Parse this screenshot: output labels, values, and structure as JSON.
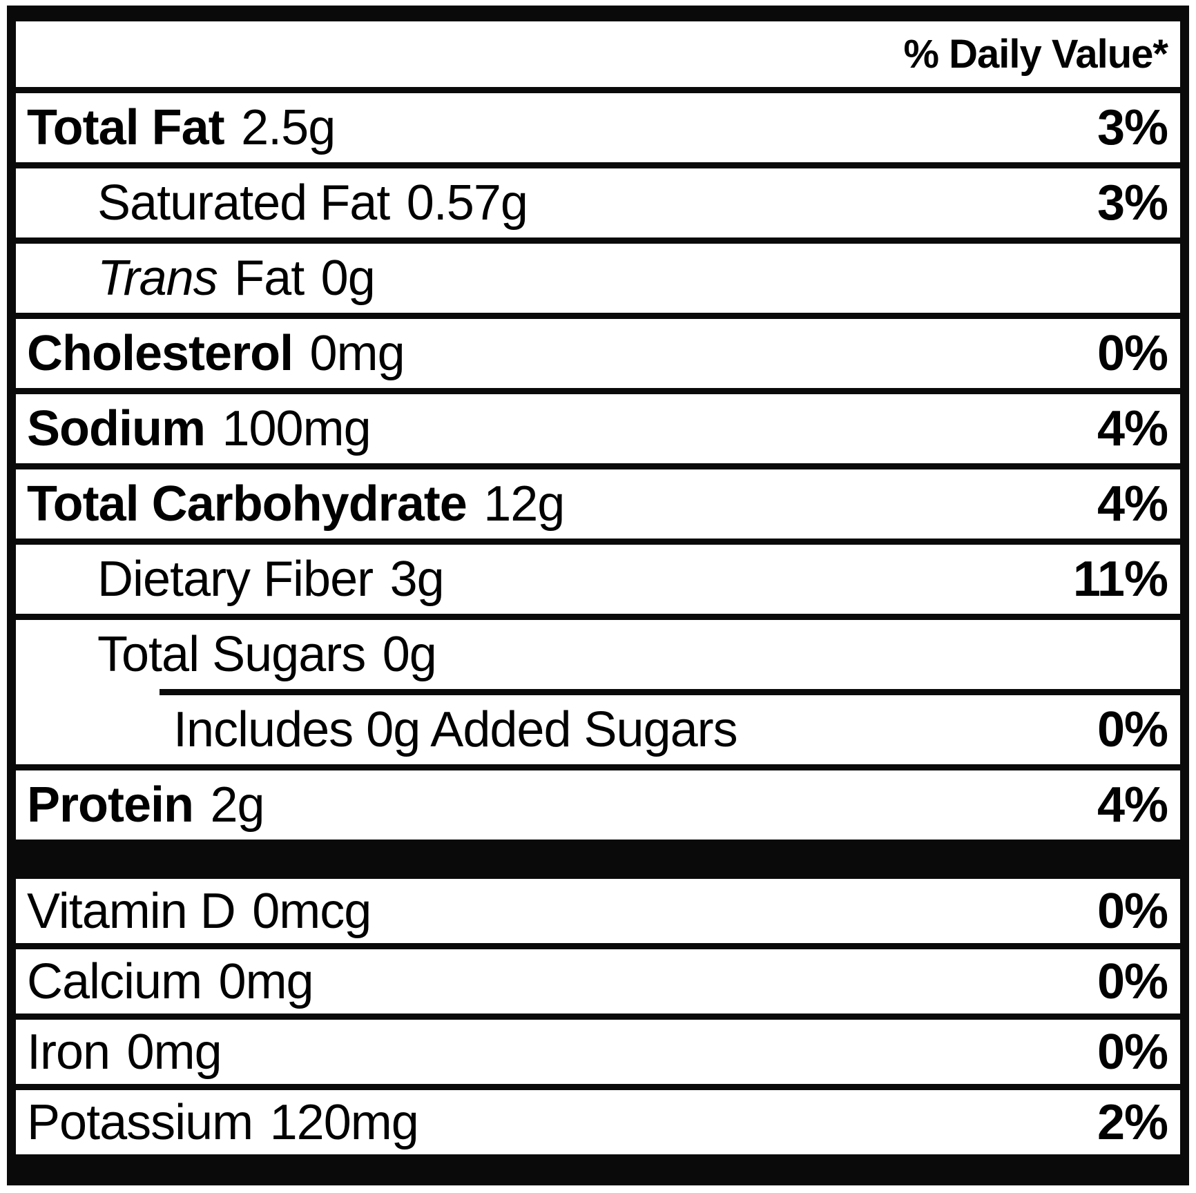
{
  "header": {
    "daily_value_label": "% Daily Value*"
  },
  "rows": [
    {
      "label": "Total Fat",
      "amount": "2.5g",
      "dv": "3%"
    },
    {
      "label": "Saturated Fat",
      "amount": "0.57g",
      "dv": "3%"
    },
    {
      "label_italic": "Trans",
      "label": "Fat",
      "amount": "0g",
      "dv": ""
    },
    {
      "label": "Cholesterol",
      "amount": "0mg",
      "dv": "0%"
    },
    {
      "label": "Sodium",
      "amount": "100mg",
      "dv": "4%"
    },
    {
      "label": "Total Carbohydrate",
      "amount": "12g",
      "dv": "4%"
    },
    {
      "label": "Dietary Fiber",
      "amount": "3g",
      "dv": "11%"
    },
    {
      "label": "Total Sugars",
      "amount": "0g",
      "dv": ""
    },
    {
      "label": "Includes 0g Added Sugars",
      "amount": "",
      "dv": "0%"
    },
    {
      "label": "Protein",
      "amount": "2g",
      "dv": "4%"
    },
    {
      "label": "Vitamin D",
      "amount": "0mcg",
      "dv": "0%"
    },
    {
      "label": "Calcium",
      "amount": "0mg",
      "dv": "0%"
    },
    {
      "label": "Iron",
      "amount": "0mg",
      "dv": "0%"
    },
    {
      "label": "Potassium",
      "amount": "120mg",
      "dv": "2%"
    }
  ],
  "colors": {
    "ink": "#0a0a0a",
    "background": "#ffffff"
  }
}
